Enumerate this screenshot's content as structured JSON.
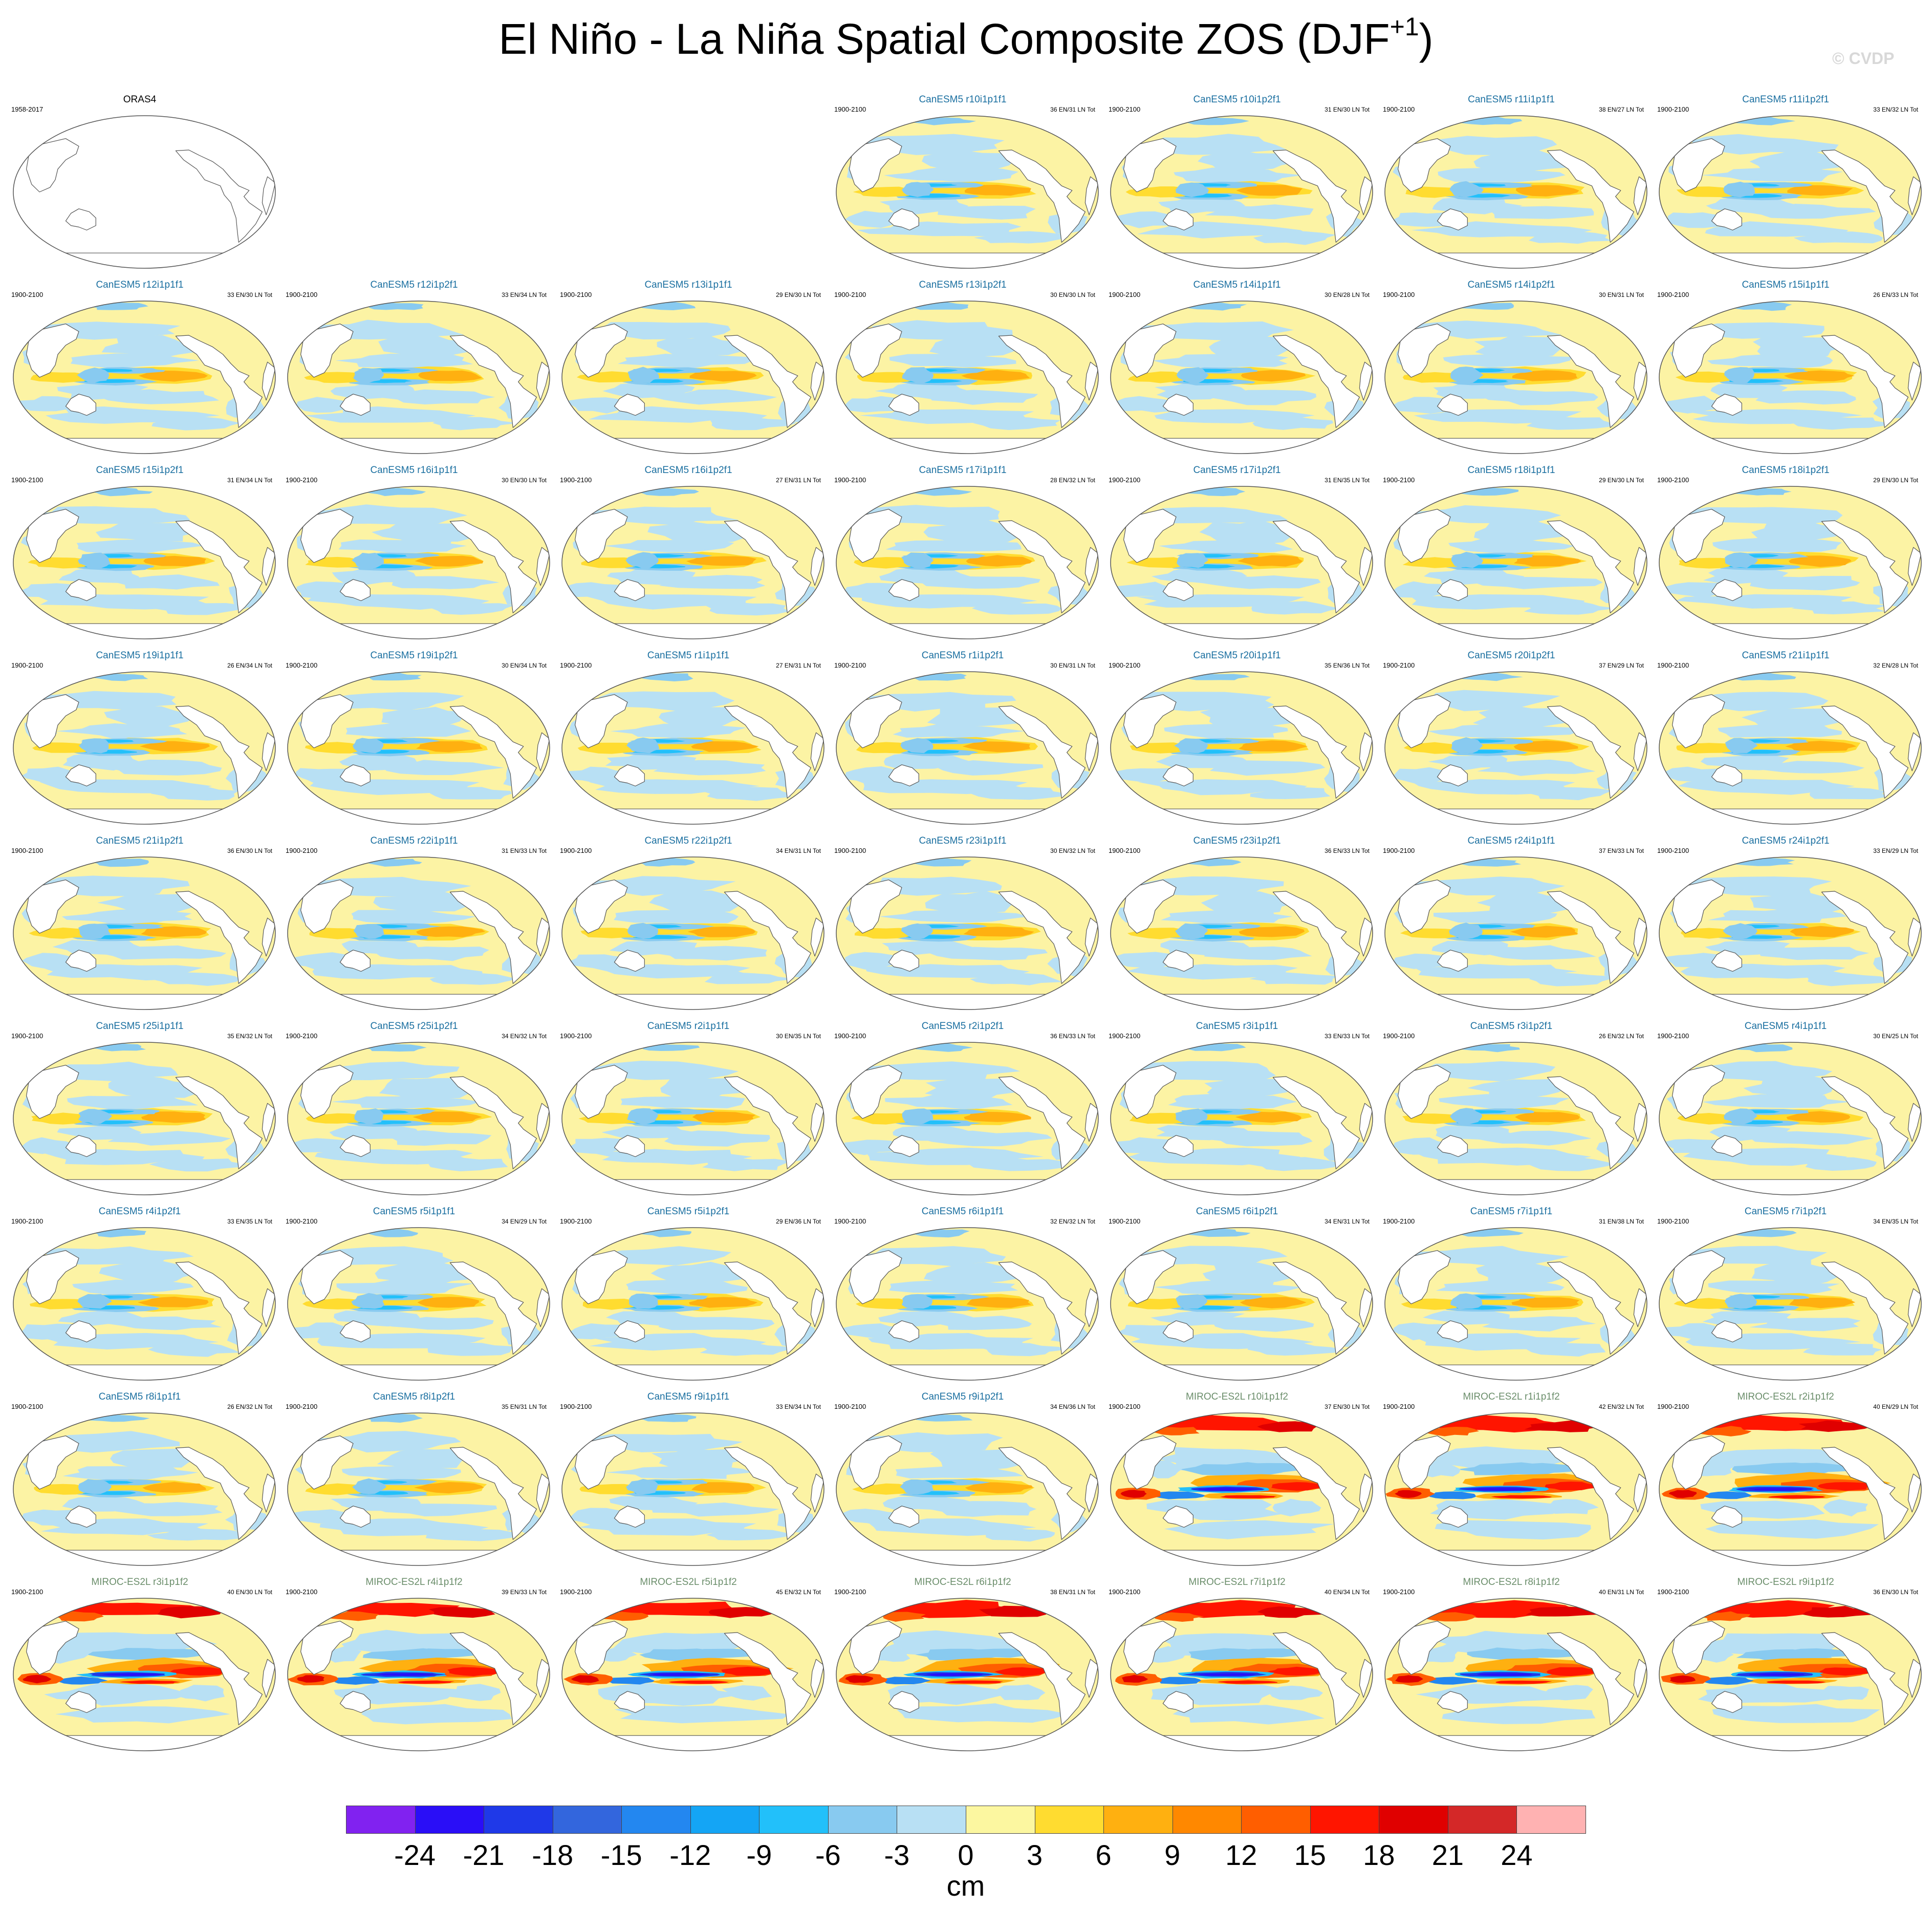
{
  "title": {
    "main": "El Niño - La Niña Spatial Composite ZOS (DJF",
    "superscript": "+1",
    "close": ")"
  },
  "watermark": "© CVDP",
  "panels": [
    {
      "title": "ORAS4",
      "years": "1958-2017",
      "stat": "",
      "color": "#000000",
      "style": "outline",
      "row": 0,
      "col": 0
    },
    {
      "title": "CanESM5 r10i1p1f1",
      "years": "1900-2100",
      "stat": "36 EN/31 LN Tot",
      "color": "#1a6fa0",
      "style": "canesm",
      "row": 0,
      "col": 3
    },
    {
      "title": "CanESM5 r10i1p2f1",
      "years": "1900-2100",
      "stat": "31 EN/30 LN Tot",
      "color": "#1a6fa0",
      "style": "canesm",
      "row": 0,
      "col": 4
    },
    {
      "title": "CanESM5 r11i1p1f1",
      "years": "1900-2100",
      "stat": "38 EN/27 LN Tot",
      "color": "#1a6fa0",
      "style": "canesm",
      "row": 0,
      "col": 5
    },
    {
      "title": "CanESM5 r11i1p2f1",
      "years": "1900-2100",
      "stat": "33 EN/32 LN Tot",
      "color": "#1a6fa0",
      "style": "canesm",
      "row": 0,
      "col": 6
    },
    {
      "title": "CanESM5 r12i1p1f1",
      "years": "1900-2100",
      "stat": "33 EN/30 LN Tot",
      "color": "#1a6fa0",
      "style": "canesm",
      "row": 1,
      "col": 0
    },
    {
      "title": "CanESM5 r12i1p2f1",
      "years": "1900-2100",
      "stat": "33 EN/34 LN Tot",
      "color": "#1a6fa0",
      "style": "canesm",
      "row": 1,
      "col": 1
    },
    {
      "title": "CanESM5 r13i1p1f1",
      "years": "1900-2100",
      "stat": "29 EN/30 LN Tot",
      "color": "#1a6fa0",
      "style": "canesm",
      "row": 1,
      "col": 2
    },
    {
      "title": "CanESM5 r13i1p2f1",
      "years": "1900-2100",
      "stat": "30 EN/30 LN Tot",
      "color": "#1a6fa0",
      "style": "canesm",
      "row": 1,
      "col": 3
    },
    {
      "title": "CanESM5 r14i1p1f1",
      "years": "1900-2100",
      "stat": "30 EN/28 LN Tot",
      "color": "#1a6fa0",
      "style": "canesm",
      "row": 1,
      "col": 4
    },
    {
      "title": "CanESM5 r14i1p2f1",
      "years": "1900-2100",
      "stat": "30 EN/31 LN Tot",
      "color": "#1a6fa0",
      "style": "canesm",
      "row": 1,
      "col": 5
    },
    {
      "title": "CanESM5 r15i1p1f1",
      "years": "1900-2100",
      "stat": "26 EN/33 LN Tot",
      "color": "#1a6fa0",
      "style": "canesm",
      "row": 1,
      "col": 6
    },
    {
      "title": "CanESM5 r15i1p2f1",
      "years": "1900-2100",
      "stat": "31 EN/34 LN Tot",
      "color": "#1a6fa0",
      "style": "canesm",
      "row": 2,
      "col": 0
    },
    {
      "title": "CanESM5 r16i1p1f1",
      "years": "1900-2100",
      "stat": "30 EN/30 LN Tot",
      "color": "#1a6fa0",
      "style": "canesm",
      "row": 2,
      "col": 1
    },
    {
      "title": "CanESM5 r16i1p2f1",
      "years": "1900-2100",
      "stat": "27 EN/31 LN Tot",
      "color": "#1a6fa0",
      "style": "canesm",
      "row": 2,
      "col": 2
    },
    {
      "title": "CanESM5 r17i1p1f1",
      "years": "1900-2100",
      "stat": "28 EN/32 LN Tot",
      "color": "#1a6fa0",
      "style": "canesm",
      "row": 2,
      "col": 3
    },
    {
      "title": "CanESM5 r17i1p2f1",
      "years": "1900-2100",
      "stat": "31 EN/35 LN Tot",
      "color": "#1a6fa0",
      "style": "canesm",
      "row": 2,
      "col": 4
    },
    {
      "title": "CanESM5 r18i1p1f1",
      "years": "1900-2100",
      "stat": "29 EN/30 LN Tot",
      "color": "#1a6fa0",
      "style": "canesm",
      "row": 2,
      "col": 5
    },
    {
      "title": "CanESM5 r18i1p2f1",
      "years": "1900-2100",
      "stat": "29 EN/30 LN Tot",
      "color": "#1a6fa0",
      "style": "canesm",
      "row": 2,
      "col": 6
    },
    {
      "title": "CanESM5 r19i1p1f1",
      "years": "1900-2100",
      "stat": "26 EN/34 LN Tot",
      "color": "#1a6fa0",
      "style": "canesm",
      "row": 3,
      "col": 0
    },
    {
      "title": "CanESM5 r19i1p2f1",
      "years": "1900-2100",
      "stat": "30 EN/34 LN Tot",
      "color": "#1a6fa0",
      "style": "canesm",
      "row": 3,
      "col": 1
    },
    {
      "title": "CanESM5 r1i1p1f1",
      "years": "1900-2100",
      "stat": "27 EN/31 LN Tot",
      "color": "#1a6fa0",
      "style": "canesm",
      "row": 3,
      "col": 2
    },
    {
      "title": "CanESM5 r1i1p2f1",
      "years": "1900-2100",
      "stat": "30 EN/31 LN Tot",
      "color": "#1a6fa0",
      "style": "canesm",
      "row": 3,
      "col": 3
    },
    {
      "title": "CanESM5 r20i1p1f1",
      "years": "1900-2100",
      "stat": "35 EN/36 LN Tot",
      "color": "#1a6fa0",
      "style": "canesm",
      "row": 3,
      "col": 4
    },
    {
      "title": "CanESM5 r20i1p2f1",
      "years": "1900-2100",
      "stat": "37 EN/29 LN Tot",
      "color": "#1a6fa0",
      "style": "canesm",
      "row": 3,
      "col": 5
    },
    {
      "title": "CanESM5 r21i1p1f1",
      "years": "1900-2100",
      "stat": "32 EN/28 LN Tot",
      "color": "#1a6fa0",
      "style": "canesm",
      "row": 3,
      "col": 6
    },
    {
      "title": "CanESM5 r21i1p2f1",
      "years": "1900-2100",
      "stat": "36 EN/30 LN Tot",
      "color": "#1a6fa0",
      "style": "canesm",
      "row": 4,
      "col": 0
    },
    {
      "title": "CanESM5 r22i1p1f1",
      "years": "1900-2100",
      "stat": "31 EN/33 LN Tot",
      "color": "#1a6fa0",
      "style": "canesm",
      "row": 4,
      "col": 1
    },
    {
      "title": "CanESM5 r22i1p2f1",
      "years": "1900-2100",
      "stat": "34 EN/31 LN Tot",
      "color": "#1a6fa0",
      "style": "canesm",
      "row": 4,
      "col": 2
    },
    {
      "title": "CanESM5 r23i1p1f1",
      "years": "1900-2100",
      "stat": "30 EN/32 LN Tot",
      "color": "#1a6fa0",
      "style": "canesm",
      "row": 4,
      "col": 3
    },
    {
      "title": "CanESM5 r23i1p2f1",
      "years": "1900-2100",
      "stat": "36 EN/33 LN Tot",
      "color": "#1a6fa0",
      "style": "canesm",
      "row": 4,
      "col": 4
    },
    {
      "title": "CanESM5 r24i1p1f1",
      "years": "1900-2100",
      "stat": "37 EN/33 LN Tot",
      "color": "#1a6fa0",
      "style": "canesm",
      "row": 4,
      "col": 5
    },
    {
      "title": "CanESM5 r24i1p2f1",
      "years": "1900-2100",
      "stat": "33 EN/29 LN Tot",
      "color": "#1a6fa0",
      "style": "canesm",
      "row": 4,
      "col": 6
    },
    {
      "title": "CanESM5 r25i1p1f1",
      "years": "1900-2100",
      "stat": "35 EN/32 LN Tot",
      "color": "#1a6fa0",
      "style": "canesm",
      "row": 5,
      "col": 0
    },
    {
      "title": "CanESM5 r25i1p2f1",
      "years": "1900-2100",
      "stat": "34 EN/32 LN Tot",
      "color": "#1a6fa0",
      "style": "canesm",
      "row": 5,
      "col": 1
    },
    {
      "title": "CanESM5 r2i1p1f1",
      "years": "1900-2100",
      "stat": "30 EN/35 LN Tot",
      "color": "#1a6fa0",
      "style": "canesm",
      "row": 5,
      "col": 2
    },
    {
      "title": "CanESM5 r2i1p2f1",
      "years": "1900-2100",
      "stat": "36 EN/33 LN Tot",
      "color": "#1a6fa0",
      "style": "canesm",
      "row": 5,
      "col": 3
    },
    {
      "title": "CanESM5 r3i1p1f1",
      "years": "1900-2100",
      "stat": "33 EN/33 LN Tot",
      "color": "#1a6fa0",
      "style": "canesm",
      "row": 5,
      "col": 4
    },
    {
      "title": "CanESM5 r3i1p2f1",
      "years": "1900-2100",
      "stat": "26 EN/32 LN Tot",
      "color": "#1a6fa0",
      "style": "canesm",
      "row": 5,
      "col": 5
    },
    {
      "title": "CanESM5 r4i1p1f1",
      "years": "1900-2100",
      "stat": "30 EN/25 LN Tot",
      "color": "#1a6fa0",
      "style": "canesm",
      "row": 5,
      "col": 6
    },
    {
      "title": "CanESM5 r4i1p2f1",
      "years": "1900-2100",
      "stat": "33 EN/35 LN Tot",
      "color": "#1a6fa0",
      "style": "canesm",
      "row": 6,
      "col": 0
    },
    {
      "title": "CanESM5 r5i1p1f1",
      "years": "1900-2100",
      "stat": "34 EN/29 LN Tot",
      "color": "#1a6fa0",
      "style": "canesm",
      "row": 6,
      "col": 1
    },
    {
      "title": "CanESM5 r5i1p2f1",
      "years": "1900-2100",
      "stat": "29 EN/36 LN Tot",
      "color": "#1a6fa0",
      "style": "canesm",
      "row": 6,
      "col": 2
    },
    {
      "title": "CanESM5 r6i1p1f1",
      "years": "1900-2100",
      "stat": "32 EN/32 LN Tot",
      "color": "#1a6fa0",
      "style": "canesm",
      "row": 6,
      "col": 3
    },
    {
      "title": "CanESM5 r6i1p2f1",
      "years": "1900-2100",
      "stat": "34 EN/31 LN Tot",
      "color": "#1a6fa0",
      "style": "canesm",
      "row": 6,
      "col": 4
    },
    {
      "title": "CanESM5 r7i1p1f1",
      "years": "1900-2100",
      "stat": "31 EN/38 LN Tot",
      "color": "#1a6fa0",
      "style": "canesm",
      "row": 6,
      "col": 5
    },
    {
      "title": "CanESM5 r7i1p2f1",
      "years": "1900-2100",
      "stat": "34 EN/35 LN Tot",
      "color": "#1a6fa0",
      "style": "canesm",
      "row": 6,
      "col": 6
    },
    {
      "title": "CanESM5 r8i1p1f1",
      "years": "1900-2100",
      "stat": "26 EN/32 LN Tot",
      "color": "#1a6fa0",
      "style": "canesm",
      "row": 7,
      "col": 0
    },
    {
      "title": "CanESM5 r8i1p2f1",
      "years": "1900-2100",
      "stat": "35 EN/31 LN Tot",
      "color": "#1a6fa0",
      "style": "canesm",
      "row": 7,
      "col": 1
    },
    {
      "title": "CanESM5 r9i1p1f1",
      "years": "1900-2100",
      "stat": "33 EN/34 LN Tot",
      "color": "#1a6fa0",
      "style": "canesm",
      "row": 7,
      "col": 2
    },
    {
      "title": "CanESM5 r9i1p2f1",
      "years": "1900-2100",
      "stat": "34 EN/36 LN Tot",
      "color": "#1a6fa0",
      "style": "canesm",
      "row": 7,
      "col": 3
    },
    {
      "title": "MIROC-ES2L r10i1p1f2",
      "years": "1900-2100",
      "stat": "37 EN/30 LN Tot",
      "color": "#6b8e6b",
      "style": "miroc",
      "row": 7,
      "col": 4
    },
    {
      "title": "MIROC-ES2L r1i1p1f2",
      "years": "1900-2100",
      "stat": "42 EN/32 LN Tot",
      "color": "#6b8e6b",
      "style": "miroc",
      "row": 7,
      "col": 5
    },
    {
      "title": "MIROC-ES2L r2i1p1f2",
      "years": "1900-2100",
      "stat": "40 EN/29 LN Tot",
      "color": "#6b8e6b",
      "style": "miroc",
      "row": 7,
      "col": 6
    },
    {
      "title": "MIROC-ES2L r3i1p1f2",
      "years": "1900-2100",
      "stat": "40 EN/30 LN Tot",
      "color": "#6b8e6b",
      "style": "miroc",
      "row": 8,
      "col": 0
    },
    {
      "title": "MIROC-ES2L r4i1p1f2",
      "years": "1900-2100",
      "stat": "39 EN/33 LN Tot",
      "color": "#6b8e6b",
      "style": "miroc",
      "row": 8,
      "col": 1
    },
    {
      "title": "MIROC-ES2L r5i1p1f2",
      "years": "1900-2100",
      "stat": "45 EN/32 LN Tot",
      "color": "#6b8e6b",
      "style": "miroc",
      "row": 8,
      "col": 2
    },
    {
      "title": "MIROC-ES2L r6i1p1f2",
      "years": "1900-2100",
      "stat": "38 EN/31 LN Tot",
      "color": "#6b8e6b",
      "style": "miroc",
      "row": 8,
      "col": 3
    },
    {
      "title": "MIROC-ES2L r7i1p1f2",
      "years": "1900-2100",
      "stat": "40 EN/34 LN Tot",
      "color": "#6b8e6b",
      "style": "miroc",
      "row": 8,
      "col": 4
    },
    {
      "title": "MIROC-ES2L r8i1p1f2",
      "years": "1900-2100",
      "stat": "40 EN/31 LN Tot",
      "color": "#6b8e6b",
      "style": "miroc",
      "row": 8,
      "col": 5
    },
    {
      "title": "MIROC-ES2L r9i1p1f2",
      "years": "1900-2100",
      "stat": "36 EN/30 LN Tot",
      "color": "#6b8e6b",
      "style": "miroc",
      "row": 8,
      "col": 6
    }
  ],
  "colorbar": {
    "colors": [
      "#8122f0",
      "#2a0ef7",
      "#1f39e8",
      "#3366dd",
      "#2387f0",
      "#14a5f5",
      "#22c0fa",
      "#88caf0",
      "#b8e0f4",
      "#fcf7a0",
      "#ffdc30",
      "#ffb010",
      "#ff8800",
      "#ff5e00",
      "#ff1500",
      "#e00000",
      "#d42828",
      "#ffb2b2"
    ],
    "labels": [
      "-24",
      "-21",
      "-18",
      "-15",
      "-12",
      "-9",
      "-6",
      "-3",
      "0",
      "3",
      "6",
      "9",
      "12",
      "15",
      "18",
      "21",
      "24"
    ],
    "units": "cm"
  }
}
